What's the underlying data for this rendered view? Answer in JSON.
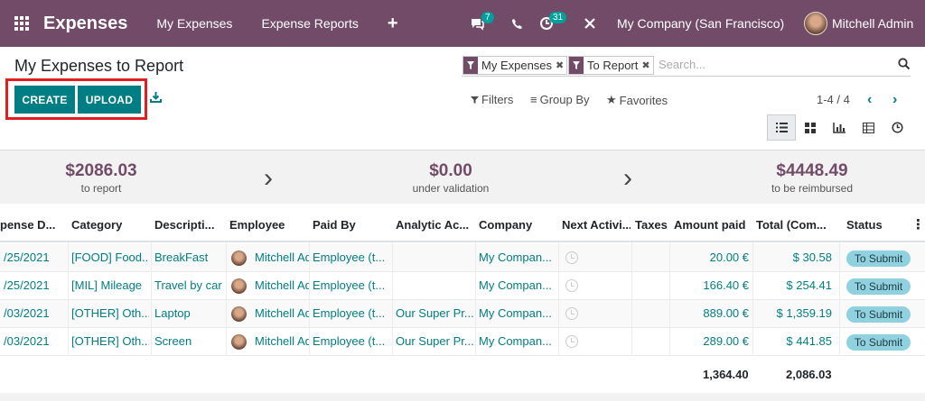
{
  "navbar": {
    "app_name": "Expenses",
    "menu": [
      "My Expenses",
      "Expense Reports"
    ],
    "plus": "+",
    "chat_count": "7",
    "activity_count": "31",
    "company": "My Company (San Francisco)",
    "user": "Mitchell Admin"
  },
  "page": {
    "title": "My Expenses to Report",
    "create_label": "CREATE",
    "upload_label": "UPLOAD"
  },
  "search": {
    "facets": [
      "My Expenses",
      "To Report"
    ],
    "placeholder": "Search..."
  },
  "options": {
    "filters": "Filters",
    "group_by": "Group By",
    "favorites": "Favorites",
    "pager": "1-4 / 4"
  },
  "summary": [
    {
      "amount": "$2086.03",
      "label": "to report"
    },
    {
      "amount": "$0.00",
      "label": "under validation"
    },
    {
      "amount": "$4448.49",
      "label": "to be reimbursed"
    }
  ],
  "table": {
    "headers": [
      "pense D...",
      "Category",
      "Descripti...",
      "Employee",
      "Paid By",
      "Analytic Ac...",
      "Company",
      "Next Activi...",
      "Taxes",
      "Amount paid",
      "Total (Com...",
      "Status"
    ],
    "rows": [
      {
        "date": "/25/2021",
        "category": "[FOOD] Food...",
        "description": "BreakFast",
        "employee": "Mitchell Ad",
        "paid_by": "Employee (t...",
        "analytic": "",
        "company": "My Compan...",
        "taxes": "",
        "amount": "20.00 €",
        "total": "$ 30.58",
        "status": "To Submit"
      },
      {
        "date": "/25/2021",
        "category": "[MIL] Mileage",
        "description": "Travel by car",
        "employee": "Mitchell Ad",
        "paid_by": "Employee (t...",
        "analytic": "",
        "company": "My Compan...",
        "taxes": "",
        "amount": "166.40 €",
        "total": "$ 254.41",
        "status": "To Submit"
      },
      {
        "date": "/03/2021",
        "category": "[OTHER] Oth...",
        "description": "Laptop",
        "employee": "Mitchell Ad",
        "paid_by": "Employee (t...",
        "analytic": "Our Super Pr...",
        "company": "My Compan...",
        "taxes": "",
        "amount": "889.00 €",
        "total": "$ 1,359.19",
        "status": "To Submit"
      },
      {
        "date": "/03/2021",
        "category": "[OTHER] Oth...",
        "description": "Screen",
        "employee": "Mitchell Ad",
        "paid_by": "Employee (t...",
        "analytic": "Our Super Pr...",
        "company": "My Compan...",
        "taxes": "",
        "amount": "289.00 €",
        "total": "$ 441.85",
        "status": "To Submit"
      }
    ],
    "totals": {
      "amount": "1,364.40",
      "total": "2,086.03"
    }
  },
  "colors": {
    "brand": "#714B67",
    "accent": "#017e84",
    "status_badge": "#8fd1df",
    "highlight_box": "#e02020"
  },
  "icons": [
    "apps-grid-icon",
    "chat-icon",
    "phone-icon",
    "activity-icon",
    "tools-icon",
    "download-icon",
    "filter-icon",
    "search-icon",
    "list-view-icon",
    "kanban-view-icon",
    "graph-view-icon",
    "pivot-view-icon",
    "activity-view-icon",
    "clock-icon"
  ]
}
